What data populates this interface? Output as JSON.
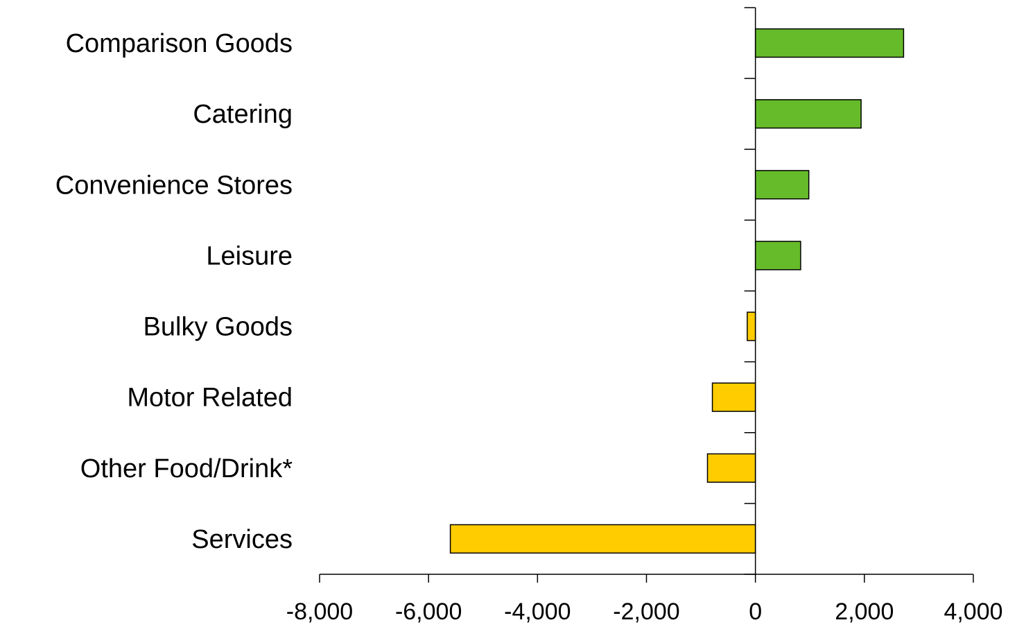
{
  "chart_data": {
    "type": "bar",
    "orientation": "horizontal",
    "title": "",
    "xlabel": "",
    "ylabel": "",
    "categories": [
      "Comparison Goods",
      "Catering",
      "Convenience Stores",
      "Leisure",
      "Bulky Goods",
      "Motor Related",
      "Other Food/Drink*",
      "Services"
    ],
    "values": [
      2720,
      1940,
      980,
      830,
      -150,
      -790,
      -880,
      -5600
    ],
    "xlim": [
      -8000,
      4000
    ],
    "x_ticks": [
      -8000,
      -6000,
      -4000,
      -2000,
      0,
      2000,
      4000
    ],
    "x_tick_labels": [
      "-8,000",
      "-6,000",
      "-4,000",
      "-2,000",
      "0",
      "2,000",
      "4,000"
    ],
    "grid": false,
    "legend": "none",
    "colors": {
      "positive": "#66bb2a",
      "negative": "#ffcc00",
      "outline": "#000000"
    }
  }
}
